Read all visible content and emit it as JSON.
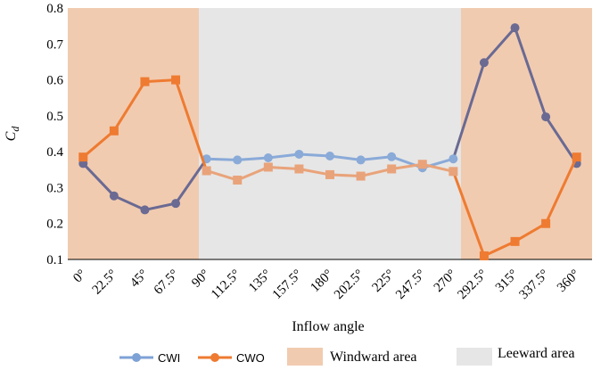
{
  "chart_data": {
    "type": "line",
    "xlabel": "Inflow angle",
    "ylabel": "C",
    "ylabel_sub": "d",
    "ylim": [
      0.1,
      0.8
    ],
    "yticks": [
      "0.1",
      "0.2",
      "0.3",
      "0.4",
      "0.5",
      "0.6",
      "0.7",
      "0.8"
    ],
    "categories": [
      "0°",
      "22.5°",
      "45°",
      "67.5°",
      "90°",
      "112.5°",
      "135°",
      "157.5°",
      "180°",
      "202.5°",
      "225°",
      "247.5°",
      "270°",
      "292.5°",
      "315°",
      "337.5°",
      "360°"
    ],
    "regions": [
      {
        "name": "Windward area",
        "from": 0,
        "to": 90,
        "color": "#f1cbb0"
      },
      {
        "name": "Leeward area",
        "from": 90,
        "to": 270,
        "color": "#e6e6e6"
      },
      {
        "name": "Windward area",
        "from": 270,
        "to": 360,
        "color": "#f1cbb0"
      }
    ],
    "series": [
      {
        "name": "CWI",
        "marker": "circle",
        "values": [
          0.367,
          0.277,
          0.238,
          0.256,
          0.38,
          0.377,
          0.383,
          0.393,
          0.388,
          0.377,
          0.386,
          0.355,
          0.38,
          0.648,
          0.745,
          0.497,
          0.367
        ]
      },
      {
        "name": "CWO",
        "marker": "square",
        "values": [
          0.385,
          0.458,
          0.595,
          0.6,
          0.347,
          0.321,
          0.357,
          0.352,
          0.336,
          0.332,
          0.352,
          0.365,
          0.345,
          0.11,
          0.15,
          0.2,
          0.385
        ]
      }
    ],
    "colors": {
      "CWI_windward": "#6a6a93",
      "CWI_leeward": "#8aaad8",
      "CWO_windward": "#ee7b31",
      "CWO_leeward": "#e9a37a",
      "windward_fill": "#f1cbb0",
      "leeward_fill": "#e6e6e6"
    },
    "legend": {
      "placement": "bottom",
      "items": [
        "CWI",
        "CWO",
        "Windward area",
        "Leeward area"
      ]
    }
  }
}
